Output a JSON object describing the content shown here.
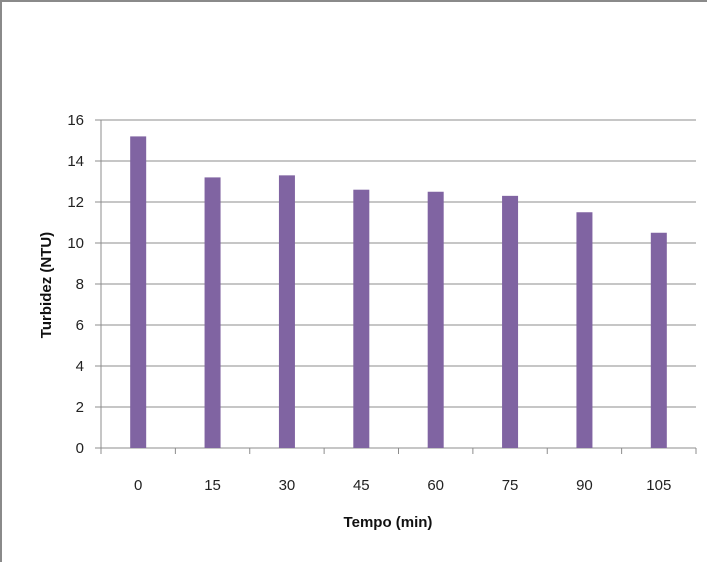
{
  "chart_data": {
    "type": "bar",
    "title": "",
    "xlabel": "Tempo (min)",
    "ylabel": "Turbidez (NTU)",
    "categories": [
      "0",
      "15",
      "30",
      "45",
      "60",
      "75",
      "90",
      "105"
    ],
    "values": [
      15.2,
      13.2,
      13.3,
      12.6,
      12.5,
      12.3,
      11.5,
      10.5
    ],
    "ylim": [
      0,
      16
    ],
    "yticks": [
      "0",
      "2",
      "4",
      "6",
      "8",
      "10",
      "12",
      "14",
      "16"
    ],
    "grid": true,
    "legend": "none",
    "bar_color": "#8064a2",
    "grid_color": "#8c8c8c"
  }
}
